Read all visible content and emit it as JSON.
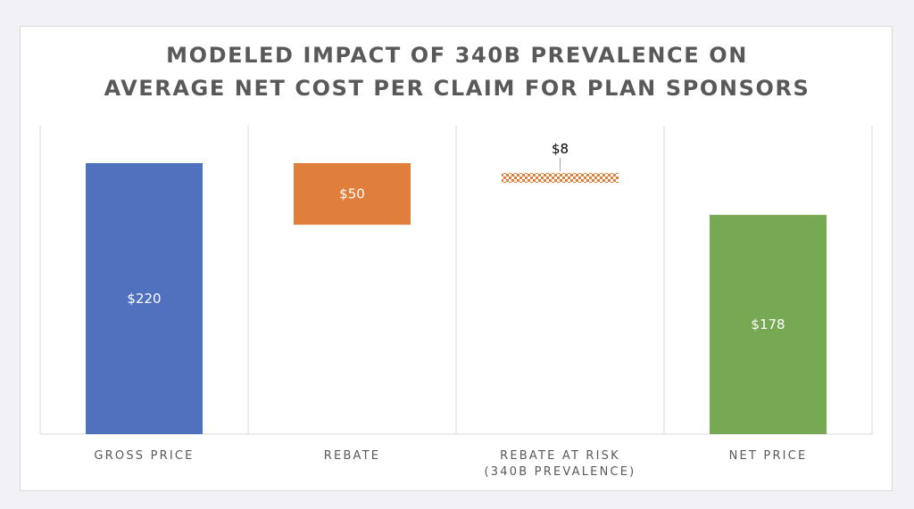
{
  "chart_data": {
    "type": "bar",
    "subtype": "waterfall",
    "title_lines": [
      "MODELED IMPACT OF 340B PREVALENCE ON",
      "AVERAGE NET COST PER CLAIM FOR PLAN SPONSORS"
    ],
    "categories": [
      [
        "GROSS PRICE"
      ],
      [
        "REBATE"
      ],
      [
        "REBATE AT RISK",
        "(340B PREVALENCE)"
      ],
      [
        "NET PRICE"
      ]
    ],
    "bars": [
      {
        "base": 0,
        "top": 220,
        "label": "$220",
        "color": "#4f71be",
        "pattern": "solid",
        "label_position": "inside"
      },
      {
        "base": 170,
        "top": 220,
        "label": "$50",
        "color": "#e07f3b",
        "pattern": "solid",
        "label_position": "inside"
      },
      {
        "base": 204,
        "top": 212,
        "label": "$8",
        "color": "#e07f3b",
        "pattern": "checker",
        "label_position": "above"
      },
      {
        "base": 0,
        "top": 178,
        "label": "$178",
        "color": "#77a854",
        "pattern": "solid",
        "label_position": "inside"
      }
    ],
    "ylim": [
      0,
      220
    ],
    "grid": "vertical separators",
    "legend": "none"
  }
}
